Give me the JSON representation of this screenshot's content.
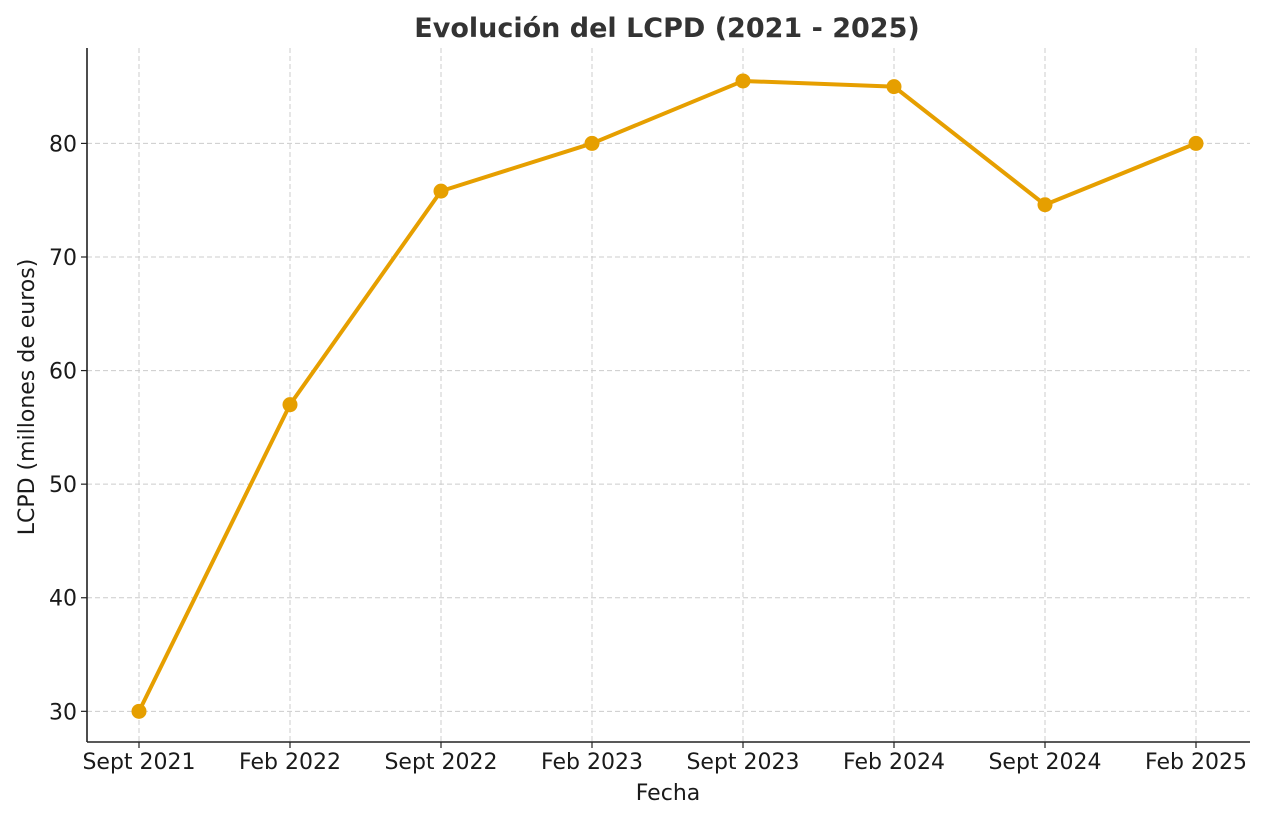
{
  "chart_data": {
    "type": "line",
    "title": "Evolución del LCPD (2021 - 2025)",
    "xlabel": "Fecha",
    "ylabel": "LCPD (millones de euros)",
    "categories": [
      "Sept 2021",
      "Feb 2022",
      "Sept 2022",
      "Feb 2023",
      "Sept 2023",
      "Feb 2024",
      "Sept 2024",
      "Feb 2025"
    ],
    "series": [
      {
        "name": "LCPD",
        "values": [
          30,
          57,
          75.8,
          80,
          85.5,
          85,
          74.6,
          80
        ]
      }
    ],
    "ylim": [
      27.3,
      88.4
    ],
    "yticks": [
      30,
      40,
      50,
      60,
      70,
      80
    ],
    "grid": true,
    "color": "#E69F00"
  }
}
